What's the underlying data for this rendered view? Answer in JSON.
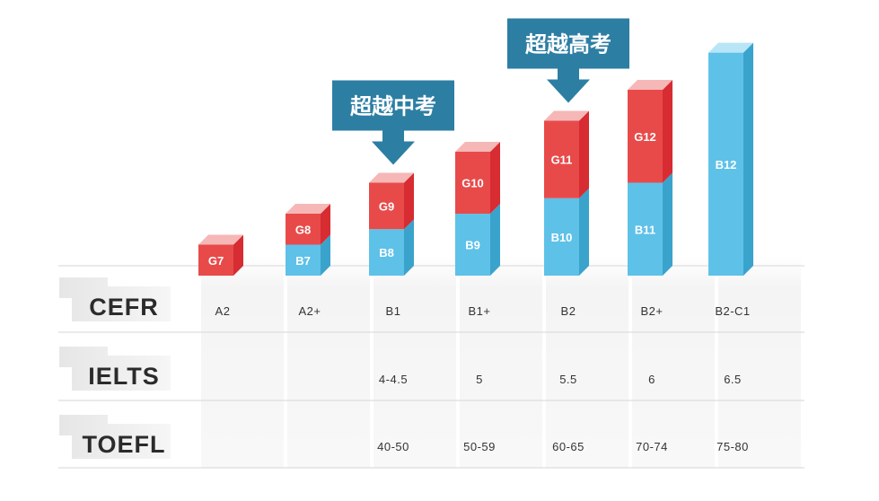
{
  "chart_data": {
    "type": "bar",
    "stacked": true,
    "categories": [
      "A2",
      "A2+",
      "B1",
      "B1+",
      "B2",
      "B2+",
      "B2-C1"
    ],
    "segments": [
      {
        "labels": [
          "",
          "B7",
          "B8",
          "B9",
          "B10",
          "B11",
          "B12"
        ],
        "color": "#5ec1e8"
      },
      {
        "labels": [
          "G7",
          "G8",
          "G9",
          "G10",
          "G11",
          "G12",
          ""
        ],
        "color": "#e84a4a"
      }
    ],
    "bar_levels": [
      {
        "blue": 0,
        "red": 1
      },
      {
        "blue": 1,
        "red": 1
      },
      {
        "blue": 1.5,
        "red": 1.5
      },
      {
        "blue": 2,
        "red": 2
      },
      {
        "blue": 2.5,
        "red": 2.5
      },
      {
        "blue": 3,
        "red": 3
      },
      {
        "blue": 7.2,
        "red": 0
      }
    ],
    "annotations": [
      {
        "text": "超越中考",
        "category": "B1"
      },
      {
        "text": "超越高考",
        "category": "B2"
      }
    ],
    "table": {
      "rows": [
        {
          "title": "CEFR",
          "values": [
            "A2",
            "A2+",
            "B1",
            "B1+",
            "B2",
            "B2+",
            "B2-C1"
          ]
        },
        {
          "title": "IELTS",
          "values": [
            "",
            "",
            "4-4.5",
            "5",
            "5.5",
            "6",
            "6.5"
          ]
        },
        {
          "title": "TOEFL",
          "values": [
            "",
            "",
            "40-50",
            "50-59",
            "60-65",
            "70-74",
            "75-80"
          ]
        }
      ]
    },
    "colors": {
      "blue_front": "#5ec1e8",
      "blue_side": "#3aa3cc",
      "blue_top": "#b8e6f6",
      "red_front": "#e84a4a",
      "red_side": "#d62c32",
      "red_top": "#f6b7b7",
      "callout": "#2d7ea3"
    }
  }
}
